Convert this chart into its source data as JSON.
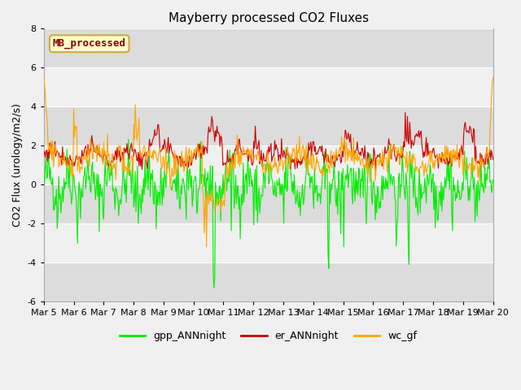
{
  "title": "Mayberry processed CO2 Fluxes",
  "ylabel": "CO2 Flux (urology/m2/s)",
  "ylim": [
    -6,
    8
  ],
  "yticks": [
    -6,
    -4,
    -2,
    0,
    2,
    4,
    6,
    8
  ],
  "legend_label": "MB_processed",
  "series_labels": [
    "gpp_ANNnight",
    "er_ANNnight",
    "wc_gf"
  ],
  "series_colors": [
    "#00ee00",
    "#cc0000",
    "#ffa500"
  ],
  "line_width": 0.8,
  "fig_bg_color": "#f0f0f0",
  "plot_bg_color": "#ffffff",
  "band_color_dark": "#dcdcdc",
  "band_color_light": "#f0f0f0",
  "n_points": 600,
  "x_start": 5,
  "x_end": 20,
  "xtick_labels": [
    "Mar 5",
    "Mar 6",
    "Mar 7",
    "Mar 8",
    "Mar 9",
    "Mar 10",
    "Mar 11",
    "Mar 12",
    "Mar 13",
    "Mar 14",
    "Mar 15",
    "Mar 16",
    "Mar 17",
    "Mar 18",
    "Mar 19",
    "Mar 20"
  ],
  "xtick_positions": [
    5,
    6,
    7,
    8,
    9,
    10,
    11,
    12,
    13,
    14,
    15,
    16,
    17,
    18,
    19,
    20
  ],
  "legend_items": [
    "gpp_ANNnight",
    "er_ANNnight",
    "wc_gf"
  ],
  "legend_colors": [
    "#00ee00",
    "#cc0000",
    "#ffa500"
  ],
  "title_fontsize": 11,
  "axis_fontsize": 9,
  "tick_fontsize": 8
}
